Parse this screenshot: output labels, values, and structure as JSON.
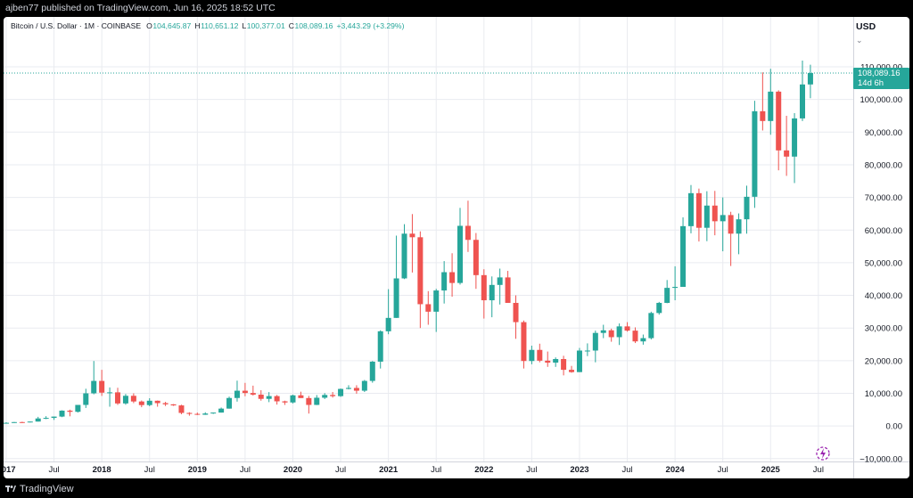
{
  "header": {
    "published_text": "ajben77 published on TradingView.com, Jun 16, 2025 18:52 UTC"
  },
  "footer": {
    "brand_label": "TradingView"
  },
  "colors": {
    "up": "#26a69a",
    "down": "#ef5350",
    "grid": "#e9ebf0",
    "text": "#131722",
    "background": "#ffffff"
  },
  "chart_data": {
    "type": "candlestick",
    "title": "Bitcoin / U.S. Dollar · 1M · COINBASE",
    "ohlc_legend": {
      "o_label": "O",
      "o_value": "104,645.87",
      "h_label": "H",
      "h_value": "110,651.12",
      "l_label": "L",
      "l_value": "100,377.01",
      "c_label": "C",
      "c_value": "108,089.16",
      "change": "+3,443.29 (+3.29%)"
    },
    "currency_label": "USD",
    "last_price_label": "108,089.16",
    "countdown_label": "14d 6h",
    "last_price": 108089.16,
    "ylim": [
      -10000,
      110000
    ],
    "y_ticks": [
      "110,000.00",
      "100,000.00",
      "90,000.00",
      "80,000.00",
      "70,000.00",
      "60,000.00",
      "50,000.00",
      "40,000.00",
      "30,000.00",
      "20,000.00",
      "10,000.00",
      "0.00",
      "−10,000.00"
    ],
    "y_tick_values": [
      110000,
      100000,
      90000,
      80000,
      70000,
      60000,
      50000,
      40000,
      30000,
      20000,
      10000,
      0,
      -10000
    ],
    "x_ticks": [
      {
        "label": "2017",
        "bar": 0,
        "bold": true
      },
      {
        "label": "Jul",
        "bar": 6,
        "bold": false
      },
      {
        "label": "2018",
        "bar": 12,
        "bold": true
      },
      {
        "label": "Jul",
        "bar": 18,
        "bold": false
      },
      {
        "label": "2019",
        "bar": 24,
        "bold": true
      },
      {
        "label": "Jul",
        "bar": 30,
        "bold": false
      },
      {
        "label": "2020",
        "bar": 36,
        "bold": true
      },
      {
        "label": "Jul",
        "bar": 42,
        "bold": false
      },
      {
        "label": "2021",
        "bar": 48,
        "bold": true
      },
      {
        "label": "Jul",
        "bar": 54,
        "bold": false
      },
      {
        "label": "2022",
        "bar": 60,
        "bold": true
      },
      {
        "label": "Jul",
        "bar": 66,
        "bold": false
      },
      {
        "label": "2023",
        "bar": 72,
        "bold": true
      },
      {
        "label": "Jul",
        "bar": 78,
        "bold": false
      },
      {
        "label": "2024",
        "bar": 84,
        "bold": true
      },
      {
        "label": "Jul",
        "bar": 90,
        "bold": false
      },
      {
        "label": "2025",
        "bar": 96,
        "bold": true
      },
      {
        "label": "Jul",
        "bar": 102,
        "bold": false
      }
    ],
    "candles": [
      [
        970,
        1120,
        750,
        970
      ],
      [
        970,
        1220,
        920,
        1190
      ],
      [
        1190,
        1300,
        900,
        1080
      ],
      [
        1080,
        1360,
        1070,
        1350
      ],
      [
        1350,
        2800,
        1350,
        2300
      ],
      [
        2300,
        3000,
        2100,
        2480
      ],
      [
        2480,
        2900,
        1850,
        2875
      ],
      [
        2875,
        4800,
        2700,
        4700
      ],
      [
        4700,
        5000,
        2950,
        4340
      ],
      [
        4340,
        6450,
        4110,
        6450
      ],
      [
        6450,
        11400,
        5520,
        10000
      ],
      [
        10000,
        19900,
        9700,
        13800
      ],
      [
        13800,
        17200,
        9200,
        10200
      ],
      [
        10200,
        11800,
        5900,
        10300
      ],
      [
        10300,
        11700,
        6450,
        6900
      ],
      [
        6900,
        9800,
        6500,
        9240
      ],
      [
        9240,
        10000,
        7000,
        7500
      ],
      [
        7500,
        7800,
        5750,
        6400
      ],
      [
        6400,
        8500,
        6050,
        7730
      ],
      [
        7730,
        7800,
        5900,
        7000
      ],
      [
        7000,
        7400,
        6100,
        6630
      ],
      [
        6630,
        6700,
        6160,
        6300
      ],
      [
        6300,
        6500,
        3600,
        4000
      ],
      [
        4000,
        4200,
        3150,
        3700
      ],
      [
        3700,
        4100,
        3350,
        3440
      ],
      [
        3440,
        4200,
        3400,
        3820
      ],
      [
        3820,
        4100,
        3700,
        4100
      ],
      [
        4100,
        5640,
        4100,
        5320
      ],
      [
        5320,
        9000,
        5300,
        8570
      ],
      [
        8570,
        13880,
        7460,
        10800
      ],
      [
        10800,
        13200,
        9100,
        10100
      ],
      [
        10100,
        12350,
        9300,
        9600
      ],
      [
        9600,
        10950,
        7750,
        8300
      ],
      [
        8300,
        10370,
        7300,
        9150
      ],
      [
        9150,
        9500,
        6550,
        7550
      ],
      [
        7550,
        7750,
        6440,
        7200
      ],
      [
        7200,
        9580,
        6900,
        9390
      ],
      [
        9390,
        10500,
        8600,
        8550
      ],
      [
        8550,
        9200,
        3800,
        6450
      ],
      [
        6450,
        9470,
        6400,
        8650
      ],
      [
        8650,
        10060,
        8250,
        9500
      ],
      [
        9500,
        10400,
        8700,
        9140
      ],
      [
        9140,
        11470,
        8900,
        11350
      ],
      [
        11350,
        12480,
        11200,
        11650
      ],
      [
        11650,
        12480,
        9880,
        10800
      ],
      [
        10800,
        14100,
        10400,
        13800
      ],
      [
        13800,
        19900,
        13250,
        19700
      ],
      [
        19700,
        29300,
        17600,
        29000
      ],
      [
        29000,
        41900,
        28100,
        33100
      ],
      [
        33100,
        58300,
        33100,
        45200
      ],
      [
        45200,
        61800,
        45000,
        58900
      ],
      [
        58900,
        64900,
        47000,
        57800
      ],
      [
        57800,
        59600,
        30000,
        37300
      ],
      [
        37300,
        41300,
        31000,
        35000
      ],
      [
        35000,
        42000,
        28800,
        41500
      ],
      [
        41500,
        50500,
        37500,
        47100
      ],
      [
        47100,
        52900,
        39600,
        43800
      ],
      [
        43800,
        66800,
        43300,
        61300
      ],
      [
        61300,
        69000,
        53300,
        57000
      ],
      [
        57000,
        59100,
        42000,
        46200
      ],
      [
        46200,
        48000,
        32900,
        38500
      ],
      [
        38500,
        45800,
        33300,
        43200
      ],
      [
        43200,
        48200,
        37200,
        45500
      ],
      [
        45500,
        47500,
        37700,
        37700
      ],
      [
        37700,
        40000,
        26700,
        31800
      ],
      [
        31800,
        32300,
        17600,
        19900
      ],
      [
        19900,
        24600,
        18900,
        23300
      ],
      [
        23300,
        25200,
        19500,
        20000
      ],
      [
        20000,
        22800,
        18100,
        19400
      ],
      [
        19400,
        21000,
        18100,
        20500
      ],
      [
        20500,
        21500,
        15500,
        17200
      ],
      [
        17200,
        18400,
        16300,
        16500
      ],
      [
        16500,
        23900,
        16500,
        23100
      ],
      [
        23100,
        25300,
        21400,
        23100
      ],
      [
        23100,
        29200,
        19500,
        28500
      ],
      [
        28500,
        31000,
        26900,
        29300
      ],
      [
        29300,
        29800,
        25800,
        27200
      ],
      [
        27200,
        31400,
        24800,
        30500
      ],
      [
        30500,
        31800,
        28900,
        29200
      ],
      [
        29200,
        30200,
        25400,
        25900
      ],
      [
        25900,
        28000,
        24900,
        26900
      ],
      [
        26900,
        35000,
        26500,
        34600
      ],
      [
        34600,
        38000,
        34100,
        37700
      ],
      [
        37700,
        44700,
        37600,
        42300
      ],
      [
        42300,
        48900,
        38500,
        42600
      ],
      [
        42600,
        63900,
        42600,
        61200
      ],
      [
        61200,
        73800,
        59000,
        71300
      ],
      [
        71300,
        72700,
        56500,
        60700
      ],
      [
        60700,
        71900,
        56600,
        67500
      ],
      [
        67500,
        72000,
        58400,
        62700
      ],
      [
        62700,
        70000,
        53500,
        64600
      ],
      [
        64600,
        65600,
        49000,
        58900
      ],
      [
        58900,
        65100,
        52600,
        63300
      ],
      [
        63300,
        73600,
        58900,
        70200
      ],
      [
        70200,
        99600,
        66800,
        96400
      ],
      [
        96400,
        108300,
        90500,
        93400
      ],
      [
        93400,
        109400,
        89200,
        102400
      ],
      [
        102400,
        102800,
        78300,
        84400
      ],
      [
        84400,
        95000,
        76600,
        82500
      ],
      [
        82500,
        95800,
        74400,
        94200
      ],
      [
        94200,
        111900,
        93400,
        104600
      ],
      [
        104600,
        110651,
        100377,
        108089
      ]
    ]
  }
}
